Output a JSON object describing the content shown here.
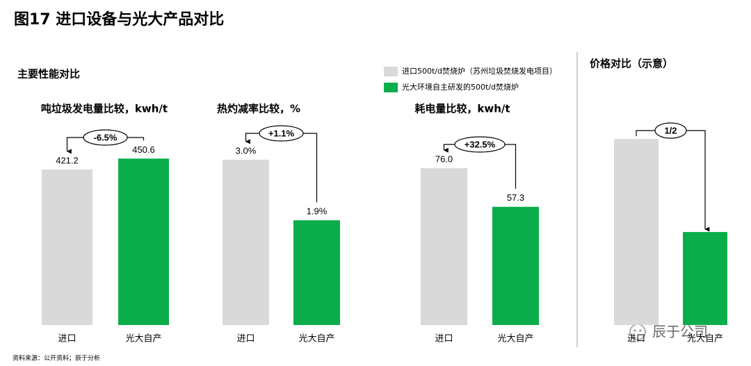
{
  "title": "图17 进口设备与光大产品对比",
  "section": "主要性能对比",
  "legend": [
    {
      "name": "进口500t/d焚烧炉（苏州垃圾焚烧发电项目）",
      "color": "#d9d9d9"
    },
    {
      "name": "光大环境自主研发的500t/d焚烧炉",
      "color": "#0aad4a"
    }
  ],
  "source": "资料来源：公开资料；辰于分析",
  "watermark": "辰于公司",
  "chart_data": [
    {
      "type": "bar",
      "title": "吨垃圾发电量比较，kwh/t",
      "categories": [
        "进口",
        "光大自产"
      ],
      "values": [
        421.2,
        450.6
      ],
      "data_labels": true,
      "annotation": "-6.5%",
      "ylim": [
        0,
        564
      ]
    },
    {
      "type": "bar",
      "title": "热灼减率比较，%",
      "categories": [
        "进口",
        "光大自产"
      ],
      "values": [
        3.0,
        1.9
      ],
      "value_labels": [
        "3.0%",
        "1.9%"
      ],
      "data_labels": true,
      "annotation": "+1.1%",
      "ylim": [
        0,
        3.78
      ]
    },
    {
      "type": "bar",
      "title": "耗电量比较，kwh/t",
      "categories": [
        "进口",
        "光大自产"
      ],
      "values": [
        76.0,
        57.3
      ],
      "value_labels": [
        "76.0",
        "57.3"
      ],
      "data_labels": true,
      "annotation": "+32.5%",
      "ylim": [
        0,
        101
      ]
    },
    {
      "type": "bar",
      "title": "价格对比（示意）",
      "categories": [
        "进口",
        "光大自产"
      ],
      "values": [
        1,
        0.5
      ],
      "data_labels": false,
      "annotation": "1/2",
      "ylim": [
        0,
        1.12
      ]
    }
  ]
}
